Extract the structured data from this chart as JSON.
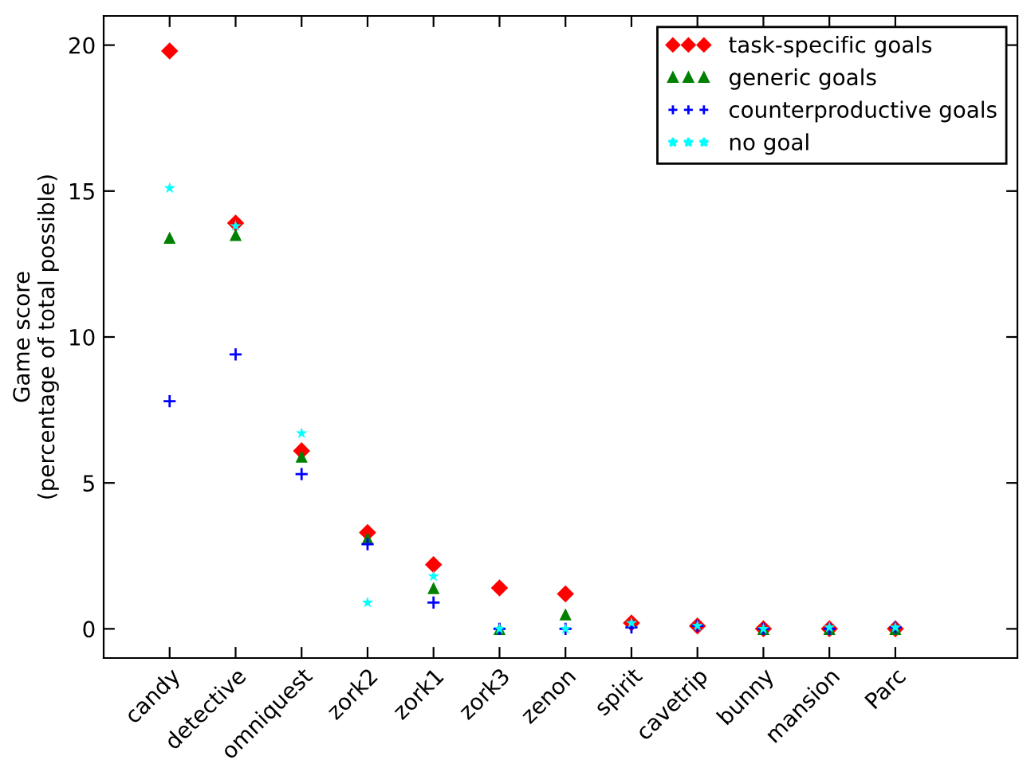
{
  "chart_data": {
    "type": "scatter",
    "ylabel": "Game score\n(percentage of total possible)",
    "categories": [
      "candy",
      "detective",
      "omniquest",
      "zork2",
      "zork1",
      "zork3",
      "zenon",
      "spirit",
      "cavetrip",
      "bunny",
      "mansion",
      "Parc"
    ],
    "series": [
      {
        "name": "task-specific goals",
        "color": "#ff0000",
        "marker": "diamond",
        "values": [
          19.8,
          13.9,
          6.1,
          3.3,
          2.2,
          1.4,
          1.2,
          0.2,
          0.1,
          0,
          0,
          0
        ]
      },
      {
        "name": "generic goals",
        "color": "#008000",
        "marker": "triangle",
        "values": [
          13.4,
          13.5,
          5.9,
          3.1,
          1.4,
          0,
          0.5,
          null,
          null,
          0,
          0,
          0
        ]
      },
      {
        "name": "counterproductive goals",
        "color": "#0000ff",
        "marker": "cross",
        "values": [
          7.8,
          9.4,
          5.3,
          2.9,
          0.9,
          0,
          0,
          0.05,
          0.1,
          0,
          0,
          0.05
        ]
      },
      {
        "name": "no goal",
        "color": "#00ffff",
        "marker": "star",
        "values": [
          15.1,
          13.8,
          6.7,
          0.9,
          1.8,
          0,
          0,
          0.2,
          0.1,
          0,
          0.05,
          0.05
        ]
      }
    ],
    "ylim": [
      -1,
      21
    ],
    "yticks": [
      0,
      5,
      10,
      15,
      20
    ],
    "grid": false,
    "legend": "top right"
  }
}
